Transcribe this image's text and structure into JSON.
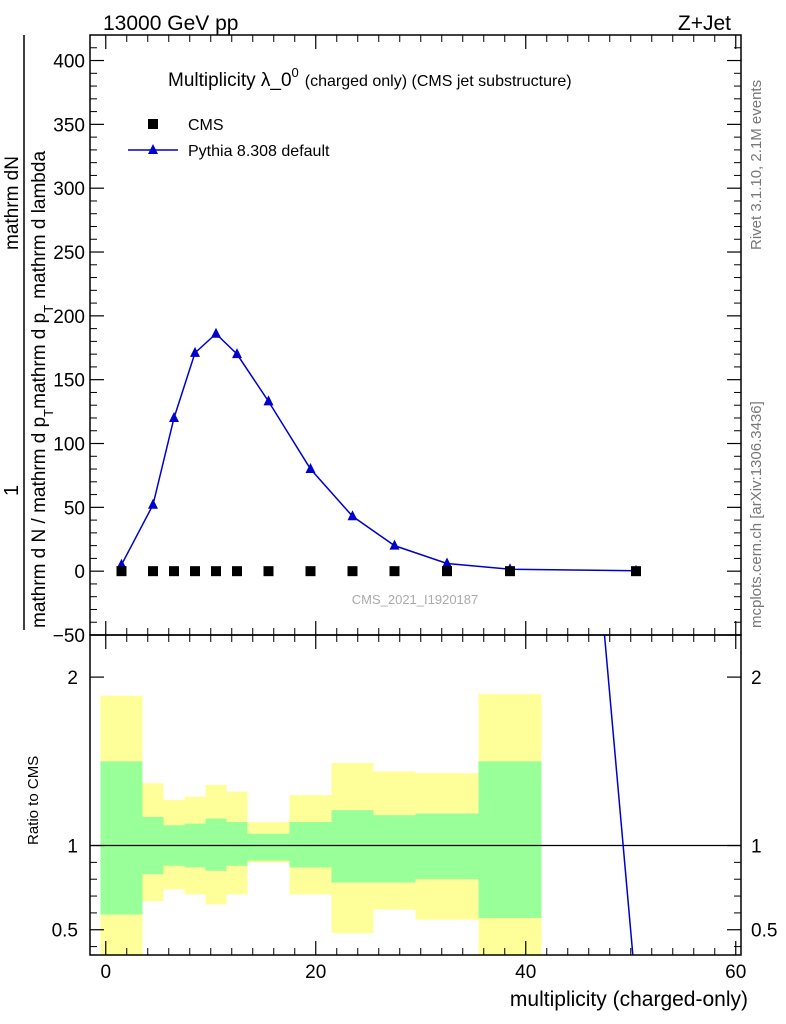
{
  "header": {
    "left": "13000 GeV pp",
    "right": "Z+Jet"
  },
  "side_labels": {
    "rivet": "Rivet 3.1.10,  2.1M events",
    "mcplots": "mcplots.cern.ch [arXiv:1306.3436]"
  },
  "watermark": "CMS_2021_I1920187",
  "colors": {
    "pythia": "#0000cc",
    "cms": "#000000",
    "band_inner": "#99ff99",
    "band_outer": "#ffff99"
  },
  "chart_data": [
    {
      "type": "line",
      "title": "Multiplicity λ_0",
      "title_sup": "0",
      "subtitle": "(charged only) (CMS jet substructure)",
      "ylabel_top": "1",
      "ylabel_bottom": "mathrm d N / mathrm d p_T mathrm d p_T mathrm d lambda",
      "ylabel_right": "mathrm dN",
      "ylabel_lines": [
        "mathrm d N / mathrm d p",
        "T",
        "mathrm d p",
        "T",
        "mathrm d lambda"
      ],
      "xlim": [
        -1.5,
        60.5
      ],
      "ylim": [
        -50,
        420
      ],
      "yticks": [
        -50,
        0,
        50,
        100,
        150,
        200,
        250,
        300,
        350,
        400
      ],
      "yticks_labels": [
        "−50",
        "0",
        "50",
        "100",
        "150",
        "200",
        "250",
        "300",
        "350",
        "400"
      ],
      "legend_position": "top-left",
      "series": [
        {
          "name": "CMS",
          "marker": "square",
          "x": [
            1.5,
            4.5,
            6.5,
            8.5,
            10.5,
            12.5,
            15.5,
            19.5,
            23.5,
            27.5,
            32.5,
            38.5,
            50.5
          ],
          "y": [
            0,
            0,
            0,
            0,
            0,
            0,
            0,
            0,
            0,
            0,
            0,
            0,
            0
          ]
        },
        {
          "name": "Pythia 8.308 default",
          "marker": "triangle",
          "x": [
            1.5,
            4.5,
            6.5,
            8.5,
            10.5,
            12.5,
            15.5,
            19.5,
            23.5,
            27.5,
            32.5,
            38.5,
            50.5
          ],
          "y": [
            5,
            52,
            120,
            171,
            186,
            170,
            133,
            80,
            43,
            20,
            6,
            1.5,
            0.3
          ]
        }
      ]
    },
    {
      "type": "area",
      "ylabel": "Ratio to CMS",
      "xlabel": "multiplicity (charged-only)",
      "xlim": [
        -1.5,
        60.5
      ],
      "ylim": [
        0.35,
        2.25
      ],
      "yticks": [
        0.5,
        1,
        2
      ],
      "yticks_labels": [
        "0.5",
        "1",
        "2"
      ],
      "xticks": [
        0,
        20,
        40,
        60
      ],
      "xticks_labels": [
        "0",
        "20",
        "40",
        "60"
      ],
      "reference": 1,
      "bins": [
        {
          "lo": -0.5,
          "hi": 3.5,
          "in_lo": 0.59,
          "in_hi": 1.5,
          "out_lo": 0.35,
          "out_hi": 1.89
        },
        {
          "lo": 3.5,
          "hi": 5.5,
          "in_lo": 0.83,
          "in_hi": 1.17,
          "out_lo": 0.67,
          "out_hi": 1.37
        },
        {
          "lo": 5.5,
          "hi": 7.5,
          "in_lo": 0.88,
          "in_hi": 1.12,
          "out_lo": 0.74,
          "out_hi": 1.27
        },
        {
          "lo": 7.5,
          "hi": 9.5,
          "in_lo": 0.87,
          "in_hi": 1.13,
          "out_lo": 0.71,
          "out_hi": 1.29
        },
        {
          "lo": 9.5,
          "hi": 11.5,
          "in_lo": 0.85,
          "in_hi": 1.16,
          "out_lo": 0.65,
          "out_hi": 1.36
        },
        {
          "lo": 11.5,
          "hi": 13.5,
          "in_lo": 0.88,
          "in_hi": 1.14,
          "out_lo": 0.71,
          "out_hi": 1.32
        },
        {
          "lo": 13.5,
          "hi": 17.5,
          "in_lo": 0.91,
          "in_hi": 1.07,
          "out_lo": 0.9,
          "out_hi": 1.14
        },
        {
          "lo": 17.5,
          "hi": 21.5,
          "in_lo": 0.87,
          "in_hi": 1.14,
          "out_lo": 0.71,
          "out_hi": 1.3
        },
        {
          "lo": 21.5,
          "hi": 25.5,
          "in_lo": 0.78,
          "in_hi": 1.21,
          "out_lo": 0.48,
          "out_hi": 1.49
        },
        {
          "lo": 25.5,
          "hi": 29.5,
          "in_lo": 0.78,
          "in_hi": 1.18,
          "out_lo": 0.62,
          "out_hi": 1.44
        },
        {
          "lo": 29.5,
          "hi": 35.5,
          "in_lo": 0.8,
          "in_hi": 1.19,
          "out_lo": 0.56,
          "out_hi": 1.43
        },
        {
          "lo": 35.5,
          "hi": 41.5,
          "in_lo": 0.57,
          "in_hi": 1.5,
          "out_lo": 0.35,
          "out_hi": 1.9
        }
      ],
      "series": [
        {
          "name": "Pythia 8.308 default",
          "x": [
            47.5,
            50.2
          ],
          "y": [
            2.3,
            0.35
          ]
        }
      ]
    }
  ]
}
